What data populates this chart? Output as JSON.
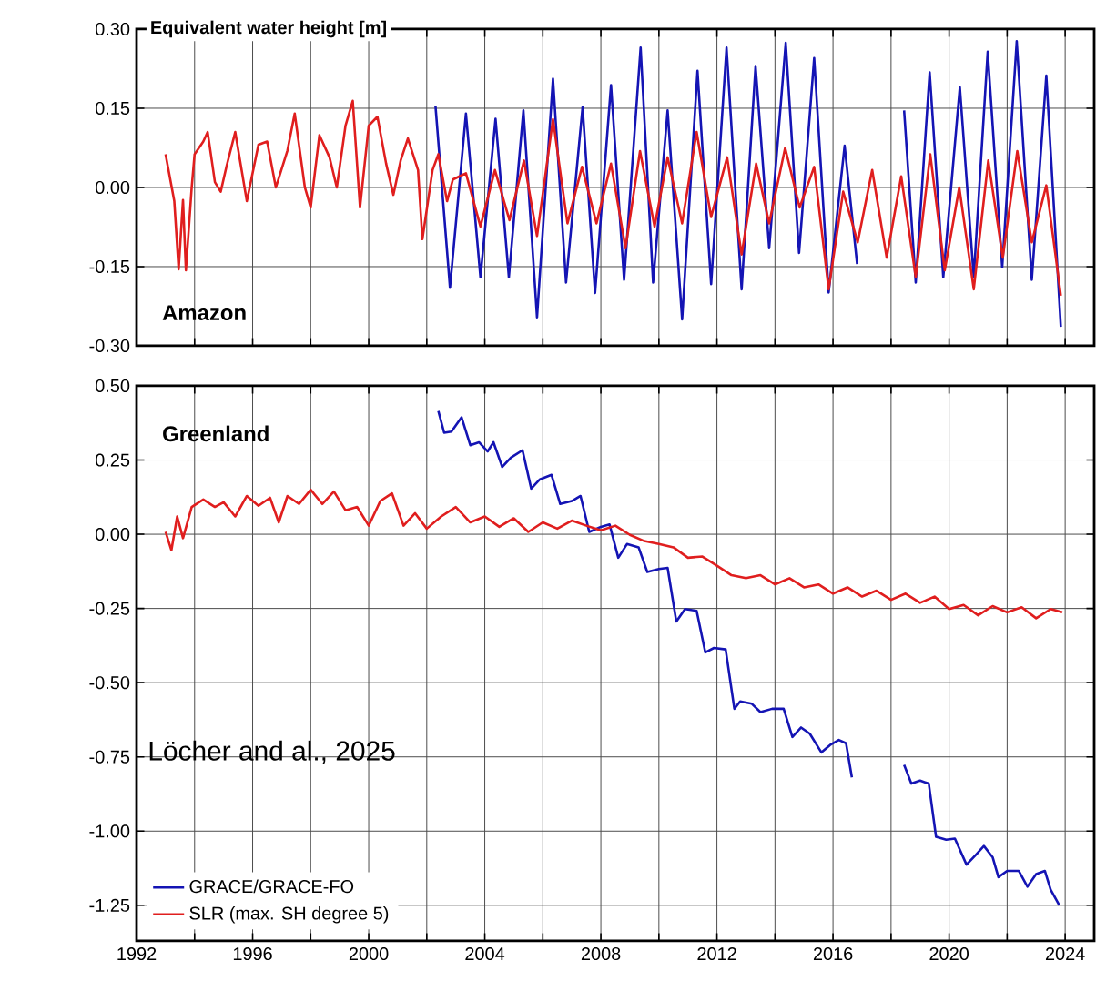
{
  "chart_data": [
    {
      "type": "line",
      "ylabel": "Equivalent water height [m]",
      "title": "Amazon",
      "xlim": [
        1992,
        2025
      ],
      "ylim": [
        -0.3,
        0.3
      ],
      "xticks": [
        1992,
        {
          "value": 1994,
          "label": null
        },
        1996,
        {
          "value": 1998,
          "label": null
        },
        2000,
        {
          "value": 2002,
          "label": null
        },
        2004,
        {
          "value": 2006,
          "label": null
        },
        2008,
        {
          "value": 2010,
          "label": null
        },
        2012,
        {
          "value": 2014,
          "label": null
        },
        2016,
        {
          "value": 2018,
          "label": null
        },
        2020,
        {
          "value": 2022,
          "label": null
        },
        2024
      ],
      "yticks": [
        {
          "value": -0.3,
          "label": "-0.30"
        },
        {
          "value": -0.15,
          "label": "-0.15"
        },
        {
          "value": 0,
          "label": "0.00"
        },
        {
          "value": 0.15,
          "label": "0.15"
        },
        {
          "value": 0.3,
          "label": "0.30"
        }
      ],
      "tick_labels": "y",
      "grid": true,
      "line_style": "solid",
      "marker": "none",
      "series": [
        {
          "color": "#1414b4",
          "x": [
            2002.3,
            2002.8,
            2003.35,
            2003.85,
            2004.37,
            2004.83,
            2005.33,
            2005.8,
            2006.35,
            2006.8,
            2007.37,
            2007.8,
            2008.35,
            2008.8,
            2009.37,
            2009.8,
            2010.3,
            2010.8,
            2011.33,
            2011.8,
            2012.33,
            2012.85,
            2013.33,
            2013.8,
            2014.37,
            2014.83,
            2015.35,
            2015.85,
            2016.4,
            2016.83,
            2017.5,
            2018.45,
            2018.85,
            2019.33,
            2019.8,
            2020.37,
            2020.85,
            2021.33,
            2021.83,
            2022.33,
            2022.85,
            2023.35,
            2023.85
          ],
          "values": [
            0.155,
            -0.19,
            0.14,
            -0.17,
            0.13,
            -0.17,
            0.146,
            -0.246,
            0.206,
            -0.18,
            0.152,
            -0.2,
            0.194,
            -0.175,
            0.265,
            -0.18,
            0.146,
            -0.25,
            0.221,
            -0.183,
            0.265,
            -0.193,
            0.23,
            -0.115,
            0.274,
            -0.124,
            0.245,
            -0.199,
            0.079,
            -0.145,
            null,
            0.146,
            -0.18,
            0.218,
            -0.17,
            0.19,
            -0.17,
            0.257,
            -0.151,
            0.277,
            -0.175,
            0.212,
            -0.264
          ]
        },
        {
          "color": "#e01e1e",
          "x": [
            1993.0,
            1993.3,
            1993.45,
            1993.6,
            1993.7,
            1993.9,
            1994.0,
            1994.3,
            1994.45,
            1994.7,
            1994.9,
            1995.1,
            1995.4,
            1995.8,
            1996.2,
            1996.5,
            1996.8,
            1997.2,
            1997.45,
            1997.8,
            1998.0,
            1998.3,
            1998.65,
            1998.9,
            1999.2,
            1999.45,
            1999.7,
            2000.0,
            2000.3,
            2000.6,
            2000.85,
            2001.1,
            2001.35,
            2001.7,
            2001.85,
            2002.2,
            2002.4,
            2002.7,
            2002.9,
            2003.35,
            2003.85,
            2004.35,
            2004.85,
            2005.35,
            2005.8,
            2006.35,
            2006.85,
            2007.35,
            2007.85,
            2008.35,
            2008.85,
            2009.35,
            2009.85,
            2010.3,
            2010.8,
            2011.3,
            2011.8,
            2012.35,
            2012.85,
            2013.35,
            2013.8,
            2014.35,
            2014.85,
            2015.35,
            2015.85,
            2016.35,
            2016.85,
            2017.35,
            2017.85,
            2018.35,
            2018.85,
            2019.35,
            2019.85,
            2020.35,
            2020.85,
            2021.35,
            2021.85,
            2022.35,
            2022.85,
            2023.35,
            2023.85
          ],
          "values": [
            0.063,
            -0.026,
            -0.155,
            -0.024,
            -0.157,
            0.0,
            0.063,
            0.087,
            0.105,
            0.01,
            -0.008,
            0.04,
            0.105,
            -0.026,
            0.081,
            0.087,
            0.0,
            0.07,
            0.14,
            0.0,
            -0.038,
            0.099,
            0.057,
            0.0,
            0.117,
            0.164,
            -0.038,
            0.117,
            0.134,
            0.045,
            -0.014,
            0.051,
            0.093,
            0.033,
            -0.098,
            0.033,
            0.063,
            -0.026,
            0.015,
            0.027,
            -0.074,
            0.033,
            -0.062,
            0.051,
            -0.092,
            0.129,
            -0.068,
            0.039,
            -0.068,
            0.045,
            -0.115,
            0.069,
            -0.074,
            0.057,
            -0.068,
            0.105,
            -0.056,
            0.057,
            -0.127,
            0.045,
            -0.068,
            0.075,
            -0.038,
            0.039,
            -0.193,
            -0.008,
            -0.104,
            0.033,
            -0.133,
            0.021,
            -0.17,
            0.063,
            -0.157,
            0.0,
            -0.193,
            0.051,
            -0.133,
            0.069,
            -0.104,
            0.004,
            -0.205
          ]
        }
      ]
    },
    {
      "type": "line",
      "title": "Greenland",
      "xlim": [
        1992,
        2025
      ],
      "ylim": [
        -1.37,
        0.5
      ],
      "xticks": [
        1992,
        {
          "value": 1994,
          "label": null
        },
        1996,
        {
          "value": 1998,
          "label": null
        },
        2000,
        {
          "value": 2002,
          "label": null
        },
        2004,
        {
          "value": 2006,
          "label": null
        },
        2008,
        {
          "value": 2010,
          "label": null
        },
        2012,
        {
          "value": 2014,
          "label": null
        },
        2016,
        {
          "value": 2018,
          "label": null
        },
        2020,
        {
          "value": 2022,
          "label": null
        },
        2024
      ],
      "yticks": [
        {
          "value": -1.25,
          "label": "-1.25"
        },
        {
          "value": -1.0,
          "label": "-1.00"
        },
        {
          "value": -0.75,
          "label": "-0.75"
        },
        {
          "value": -0.5,
          "label": "-0.50"
        },
        {
          "value": -0.25,
          "label": "-0.25"
        },
        {
          "value": 0,
          "label": "0.00"
        },
        {
          "value": 0.25,
          "label": "0.25"
        },
        {
          "value": 0.5,
          "label": "0.50"
        }
      ],
      "grid": true,
      "legend": "bottom left",
      "line_style": "solid",
      "marker": "none",
      "annotations": [
        "Löcher and al., 2025"
      ],
      "series": [
        {
          "name": "GRACE/GRACE-FO",
          "color": "#1414b4",
          "x": [
            2002.4,
            2002.6,
            2002.85,
            2003.2,
            2003.5,
            2003.8,
            2004.1,
            2004.3,
            2004.6,
            2004.9,
            2005.3,
            2005.6,
            2005.9,
            2006.3,
            2006.6,
            2007.0,
            2007.3,
            2007.6,
            2008.0,
            2008.3,
            2008.6,
            2008.9,
            2009.3,
            2009.6,
            2010.0,
            2010.3,
            2010.6,
            2010.9,
            2011.3,
            2011.6,
            2011.9,
            2012.3,
            2012.6,
            2012.8,
            2013.2,
            2013.5,
            2013.9,
            2014.3,
            2014.6,
            2014.9,
            2015.2,
            2015.6,
            2015.9,
            2016.2,
            2016.45,
            2016.65,
            2017.5,
            2018.45,
            2018.7,
            2019.0,
            2019.3,
            2019.55,
            2019.9,
            2020.2,
            2020.6,
            2020.9,
            2021.2,
            2021.5,
            2021.7,
            2022.0,
            2022.4,
            2022.7,
            2023.0,
            2023.3,
            2023.5,
            2023.8
          ],
          "values": [
            0.415,
            0.342,
            0.346,
            0.394,
            0.3,
            0.31,
            0.279,
            0.31,
            0.227,
            0.258,
            0.283,
            0.154,
            0.185,
            0.2,
            0.102,
            0.112,
            0.129,
            0.008,
            0.025,
            0.033,
            -0.079,
            -0.033,
            -0.044,
            -0.127,
            -0.117,
            -0.113,
            -0.294,
            -0.252,
            -0.258,
            -0.398,
            -0.383,
            -0.388,
            -0.588,
            -0.563,
            -0.571,
            -0.599,
            -0.588,
            -0.588,
            -0.683,
            -0.651,
            -0.672,
            -0.735,
            -0.71,
            -0.693,
            -0.704,
            -0.819,
            null,
            -0.777,
            -0.84,
            -0.83,
            -0.84,
            -1.019,
            -1.029,
            -1.025,
            -1.113,
            -1.082,
            -1.05,
            -1.088,
            -1.155,
            -1.134,
            -1.134,
            -1.187,
            -1.145,
            -1.134,
            -1.197,
            -1.25
          ]
        },
        {
          "name": "SLR (max. SH degree 5)",
          "color": "#e01e1e",
          "x": [
            1993.0,
            1993.2,
            1993.4,
            1993.6,
            1993.9,
            1994.3,
            1994.7,
            1995.0,
            1995.4,
            1995.8,
            1996.2,
            1996.6,
            1996.9,
            1997.2,
            1997.6,
            1998.0,
            1998.4,
            1998.8,
            1999.2,
            1999.6,
            2000.0,
            2000.4,
            2000.8,
            2001.2,
            2001.6,
            2002.0,
            2002.5,
            2003.0,
            2003.5,
            2004.0,
            2004.5,
            2005.0,
            2005.5,
            2006.0,
            2006.5,
            2007.0,
            2007.5,
            2008.0,
            2008.5,
            2009.0,
            2009.5,
            2010.0,
            2010.5,
            2011.0,
            2011.5,
            2012.0,
            2012.5,
            2013.0,
            2013.5,
            2014.0,
            2014.5,
            2015.0,
            2015.5,
            2016.0,
            2016.5,
            2017.0,
            2017.5,
            2018.0,
            2018.5,
            2019.0,
            2019.5,
            2020.0,
            2020.5,
            2021.0,
            2021.5,
            2022.0,
            2022.5,
            2023.0,
            2023.5,
            2023.9
          ],
          "values": [
            0.008,
            -0.054,
            0.06,
            -0.013,
            0.092,
            0.117,
            0.092,
            0.108,
            0.06,
            0.129,
            0.096,
            0.123,
            0.04,
            0.129,
            0.102,
            0.15,
            0.102,
            0.144,
            0.081,
            0.092,
            0.029,
            0.112,
            0.138,
            0.029,
            0.071,
            0.019,
            0.06,
            0.092,
            0.04,
            0.06,
            0.025,
            0.054,
            0.008,
            0.04,
            0.019,
            0.046,
            0.029,
            0.013,
            0.029,
            -0.002,
            -0.023,
            -0.033,
            -0.044,
            -0.079,
            -0.075,
            -0.106,
            -0.138,
            -0.148,
            -0.138,
            -0.169,
            -0.148,
            -0.179,
            -0.169,
            -0.2,
            -0.179,
            -0.21,
            -0.19,
            -0.221,
            -0.2,
            -0.231,
            -0.21,
            -0.252,
            -0.238,
            -0.273,
            -0.242,
            -0.263,
            -0.246,
            -0.283,
            -0.252,
            -0.263
          ]
        }
      ]
    }
  ]
}
